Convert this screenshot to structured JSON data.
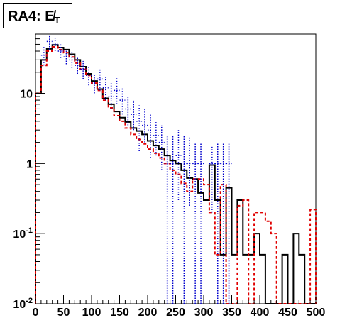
{
  "chart_data": {
    "type": "histogram",
    "title": "RA4: E̸",
    "title_subscript": "T",
    "xlabel": "",
    "ylabel": "",
    "xlim": [
      0,
      500
    ],
    "ylim": [
      0.01,
      70
    ],
    "log_y": true,
    "grid": false,
    "legend": "none",
    "x_ticks": [
      0,
      50,
      100,
      150,
      200,
      250,
      300,
      350,
      400,
      450,
      500
    ],
    "y_ticks": [
      {
        "value": 0.01,
        "base": "10",
        "exp": "-2"
      },
      {
        "value": 0.1,
        "base": "10",
        "exp": "-1"
      },
      {
        "value": 1,
        "base": "1",
        "exp": ""
      },
      {
        "value": 10,
        "base": "10",
        "exp": ""
      }
    ],
    "bin_width": 10,
    "series": [
      {
        "color": "#000000",
        "style": "solid-step",
        "values": [
          10,
          30,
          43,
          49,
          45,
          42,
          36,
          30,
          24,
          19,
          15,
          11.5,
          8.5,
          7,
          5.5,
          4.5,
          3.9,
          3.2,
          2.9,
          2.6,
          2.1,
          1.8,
          1.6,
          1.3,
          1.1,
          1.0,
          0.8,
          0.62,
          0.6,
          0.38,
          0.3,
          0.95,
          0.3,
          0.05,
          0.45,
          0.05,
          0.3,
          0.05,
          0.05,
          0.1,
          0.05,
          0.01,
          0.01,
          0.01,
          0.05,
          0.01,
          0.1,
          0.05,
          0.01,
          0.01
        ]
      },
      {
        "color": "#e00000",
        "style": "dashed-step",
        "values": [
          10,
          25,
          40,
          46,
          42,
          38,
          33,
          27,
          22,
          18,
          14,
          11,
          8,
          6.2,
          4.8,
          4.0,
          3.2,
          2.6,
          2.2,
          1.9,
          1.6,
          1.4,
          1.2,
          1.0,
          0.8,
          0.7,
          0.52,
          0.4,
          0.6,
          0.6,
          0.5,
          0.2,
          0.05,
          0.5,
          0.01,
          0.01,
          0.25,
          0.3,
          0.01,
          0.2,
          0.2,
          0.15,
          0.1,
          0.01,
          0.01,
          0.01,
          0.01,
          0.01,
          0.01,
          0.22
        ]
      },
      {
        "color": "#0000cc",
        "style": "dotted-errorbar",
        "points": [
          {
            "x": 15,
            "y": 35,
            "lo": 25,
            "hi": 48
          },
          {
            "x": 25,
            "y": 55,
            "lo": 42,
            "hi": 68
          },
          {
            "x": 35,
            "y": 50,
            "lo": 40,
            "hi": 63
          },
          {
            "x": 45,
            "y": 40,
            "lo": 32,
            "hi": 52
          },
          {
            "x": 55,
            "y": 33,
            "lo": 26,
            "hi": 42
          },
          {
            "x": 65,
            "y": 30,
            "lo": 23,
            "hi": 39
          },
          {
            "x": 75,
            "y": 25,
            "lo": 19,
            "hi": 33
          },
          {
            "x": 85,
            "y": 22,
            "lo": 16,
            "hi": 29
          },
          {
            "x": 95,
            "y": 18,
            "lo": 13,
            "hi": 24
          },
          {
            "x": 105,
            "y": 14,
            "lo": 10,
            "hi": 19
          },
          {
            "x": 115,
            "y": 16,
            "lo": 11,
            "hi": 22
          },
          {
            "x": 125,
            "y": 12,
            "lo": 8,
            "hi": 18
          },
          {
            "x": 135,
            "y": 9,
            "lo": 6,
            "hi": 14
          },
          {
            "x": 145,
            "y": 11,
            "lo": 7,
            "hi": 17
          },
          {
            "x": 155,
            "y": 8,
            "lo": 5,
            "hi": 12
          },
          {
            "x": 165,
            "y": 6,
            "lo": 3.5,
            "hi": 9
          },
          {
            "x": 175,
            "y": 5,
            "lo": 3,
            "hi": 8
          },
          {
            "x": 185,
            "y": 4,
            "lo": 1.5,
            "hi": 7
          },
          {
            "x": 195,
            "y": 3.5,
            "lo": 2,
            "hi": 6
          },
          {
            "x": 205,
            "y": 3,
            "lo": 1.2,
            "hi": 5
          },
          {
            "x": 215,
            "y": 2.5,
            "lo": 1.3,
            "hi": 4
          },
          {
            "x": 225,
            "y": 2,
            "lo": 0.8,
            "hi": 3.5
          },
          {
            "x": 235,
            "y": 1,
            "lo": 0.01,
            "hi": 2.5
          },
          {
            "x": 245,
            "y": 1,
            "lo": 0.01,
            "hi": 2.5
          },
          {
            "x": 255,
            "y": 1.3,
            "lo": 0.3,
            "hi": 3
          },
          {
            "x": 265,
            "y": 1,
            "lo": 0.01,
            "hi": 2.5
          },
          {
            "x": 275,
            "y": 1,
            "lo": 0.25,
            "hi": 2.5
          },
          {
            "x": 285,
            "y": 1,
            "lo": 0.01,
            "hi": 2
          },
          {
            "x": 295,
            "y": 1,
            "lo": 0.01,
            "hi": 2
          },
          {
            "x": 315,
            "y": 1,
            "lo": 0.2,
            "hi": 1.8
          },
          {
            "x": 325,
            "y": 1,
            "lo": 0.01,
            "hi": 2
          },
          {
            "x": 335,
            "y": 1,
            "lo": 0.01,
            "hi": 2
          },
          {
            "x": 345,
            "y": 1,
            "lo": 0.01,
            "hi": 2
          }
        ]
      }
    ]
  }
}
